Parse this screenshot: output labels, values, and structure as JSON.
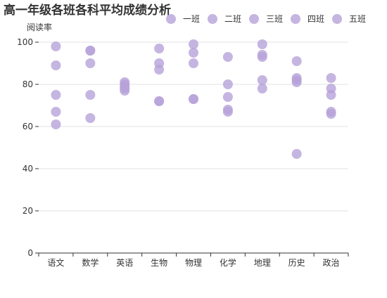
{
  "chart_data": {
    "type": "scatter",
    "title": "高一年级各班各科平均成绩分析",
    "ylabel": "阅读率",
    "xlabel": "",
    "categories": [
      "语文",
      "数学",
      "英语",
      "生物",
      "物理",
      "化学",
      "地理",
      "历史",
      "政治"
    ],
    "ylim": [
      0,
      100
    ],
    "yticks": [
      0,
      20,
      40,
      60,
      80,
      100
    ],
    "grid": true,
    "legend_position": "top-right",
    "marker_color": "#b7a3d9",
    "series": [
      {
        "name": "一班",
        "values": [
          98,
          96,
          81,
          97,
          99,
          93,
          99,
          91,
          83
        ]
      },
      {
        "name": "二班",
        "values": [
          89,
          90,
          80,
          90,
          95,
          80,
          94,
          83,
          78
        ]
      },
      {
        "name": "三班",
        "values": [
          75,
          75,
          79,
          87,
          90,
          74,
          93,
          82,
          75
        ]
      },
      {
        "name": "四班",
        "values": [
          67,
          64,
          78,
          72,
          73,
          68,
          82,
          81,
          67
        ]
      },
      {
        "name": "五班",
        "values": [
          61,
          96,
          77,
          72,
          73,
          67,
          78,
          47,
          66
        ]
      }
    ]
  }
}
